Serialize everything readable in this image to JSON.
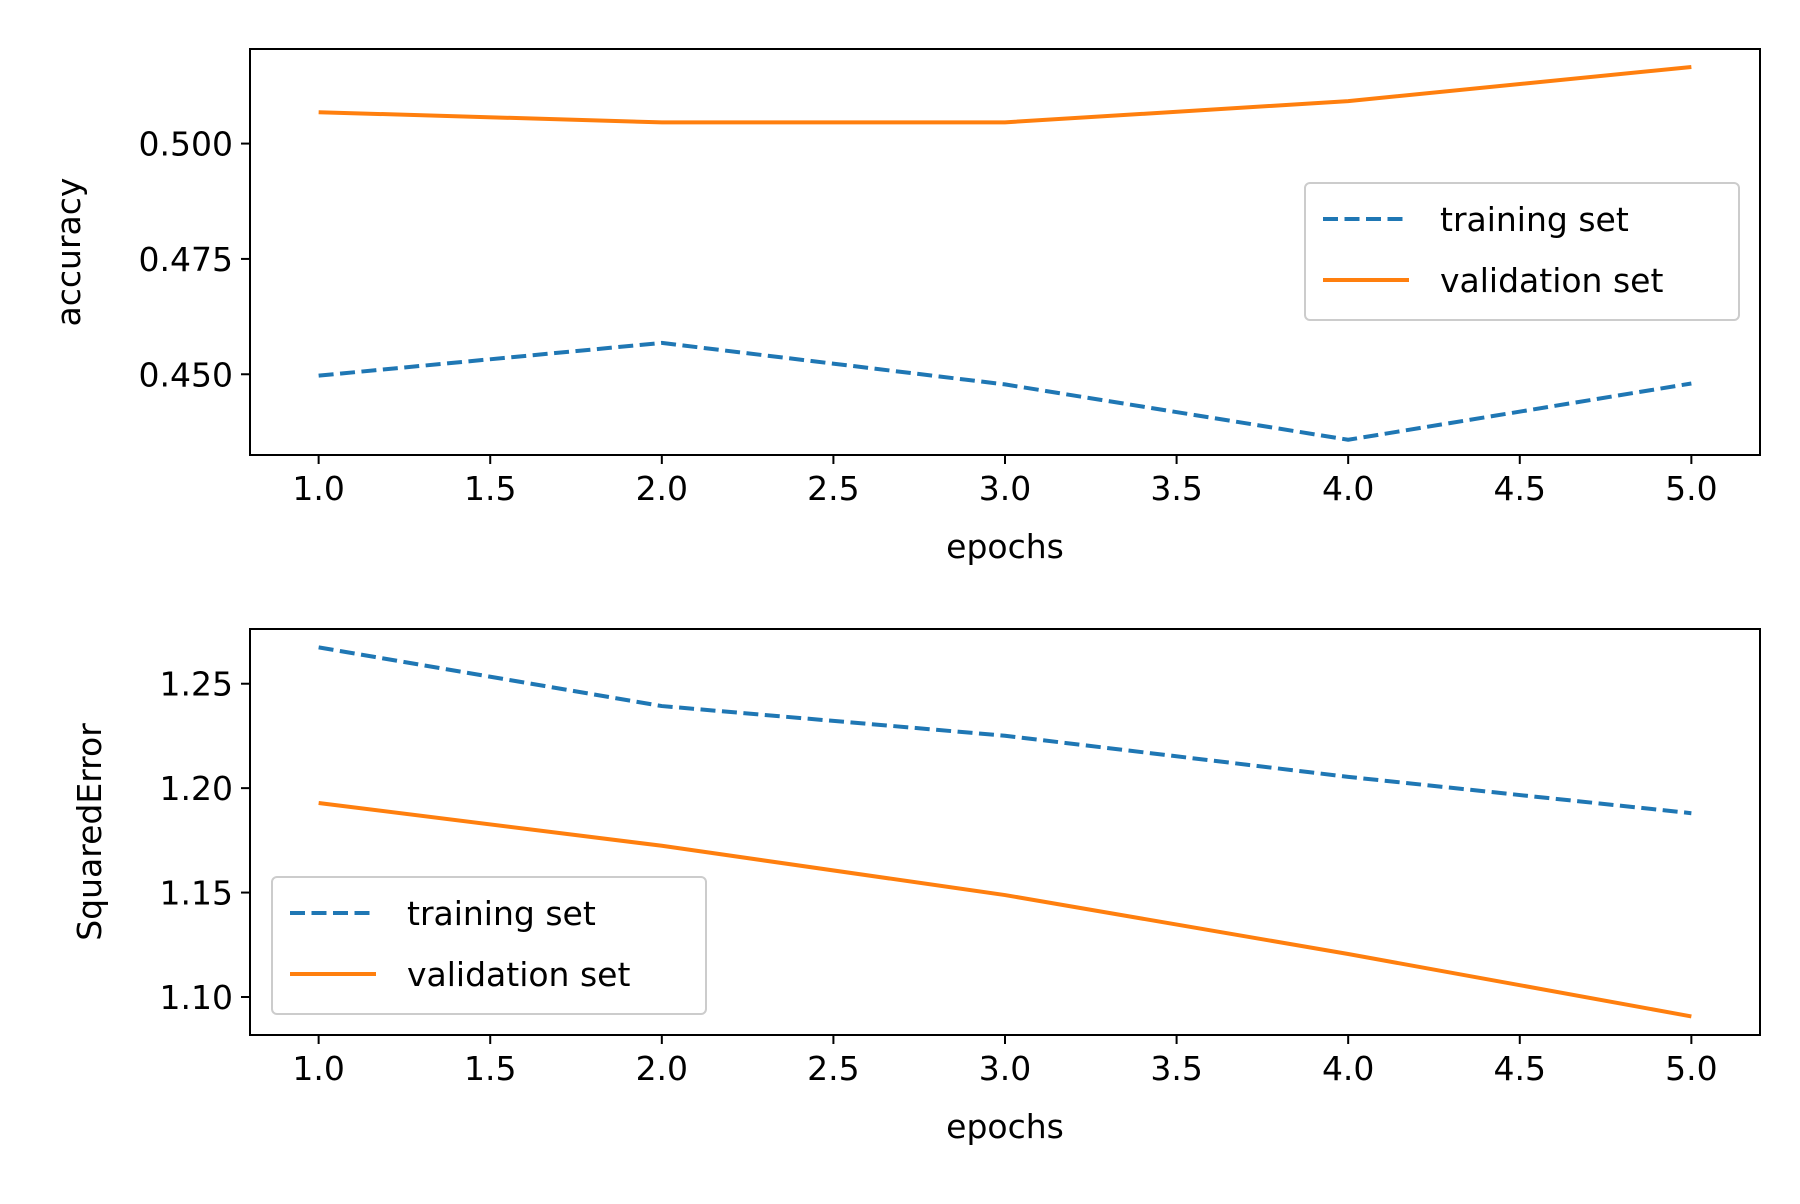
{
  "chart_data": [
    {
      "type": "line",
      "xlabel": "epochs",
      "ylabel": "accuracy",
      "x": [
        1.0,
        2.0,
        3.0,
        4.0,
        5.0
      ],
      "xlim": [
        0.8,
        5.2
      ],
      "ylim": [
        0.4325,
        0.5205
      ],
      "xticks": [
        "1.0",
        "1.5",
        "2.0",
        "2.5",
        "3.0",
        "3.5",
        "4.0",
        "4.5",
        "5.0"
      ],
      "yticks": [
        "0.450",
        "0.475",
        "0.500"
      ],
      "legend_position": "center-right",
      "grid": false,
      "series": [
        {
          "name": "training set",
          "values": [
            0.4497,
            0.4568,
            0.4478,
            0.4358,
            0.448
          ],
          "color": "#1f77b4",
          "linestyle": "dashed"
        },
        {
          "name": "validation set",
          "values": [
            0.5068,
            0.5046,
            0.5046,
            0.5092,
            0.5166
          ],
          "color": "#ff7f0e",
          "linestyle": "solid"
        }
      ]
    },
    {
      "type": "line",
      "xlabel": "epochs",
      "ylabel": "SquaredError",
      "x": [
        1.0,
        2.0,
        3.0,
        4.0,
        5.0
      ],
      "xlim": [
        0.8,
        5.2
      ],
      "ylim": [
        1.0818,
        1.2762
      ],
      "xticks": [
        "1.0",
        "1.5",
        "2.0",
        "2.5",
        "3.0",
        "3.5",
        "4.0",
        "4.5",
        "5.0"
      ],
      "yticks": [
        "1.10",
        "1.15",
        "1.20",
        "1.25"
      ],
      "legend_position": "lower-left",
      "grid": false,
      "series": [
        {
          "name": "training set",
          "values": [
            1.2674,
            1.2393,
            1.2251,
            1.2054,
            1.188
          ],
          "color": "#1f77b4",
          "linestyle": "dashed"
        },
        {
          "name": "validation set",
          "values": [
            1.1929,
            1.1724,
            1.1488,
            1.1206,
            1.0907
          ],
          "color": "#ff7f0e",
          "linestyle": "solid"
        }
      ]
    }
  ]
}
